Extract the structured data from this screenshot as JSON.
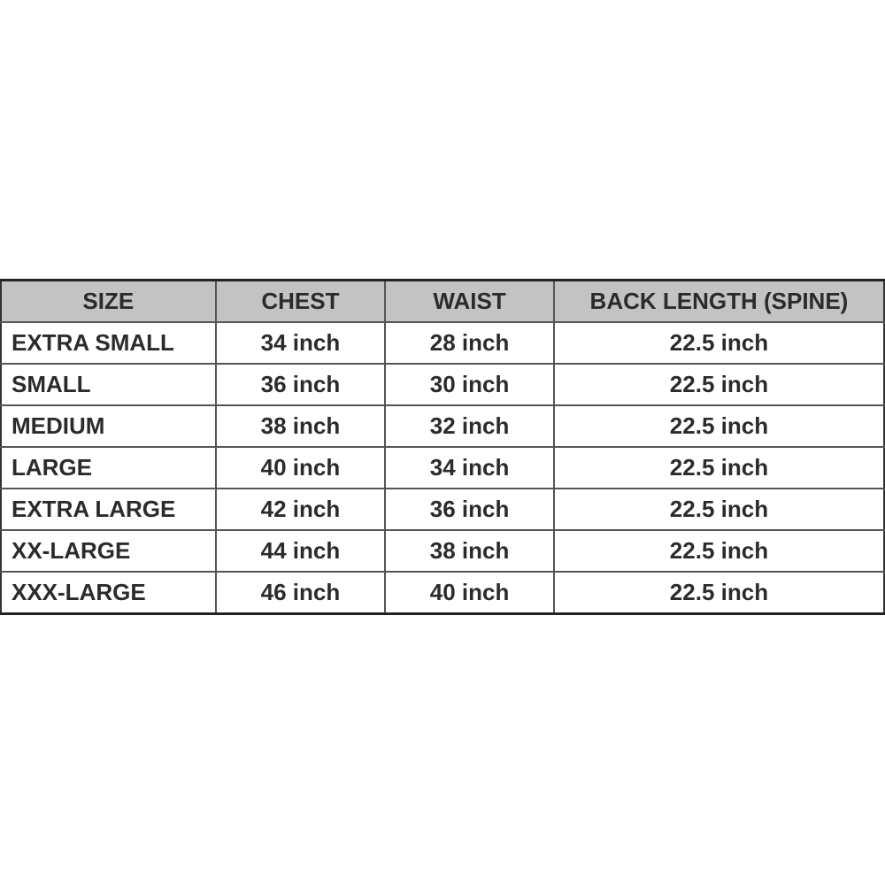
{
  "table": {
    "headers": [
      "SIZE",
      "CHEST",
      "WAIST",
      "BACK LENGTH (SPINE)"
    ],
    "rows": [
      [
        "EXTRA SMALL",
        "34 inch",
        "28 inch",
        "22.5 inch"
      ],
      [
        "SMALL",
        "36 inch",
        "30 inch",
        "22.5 inch"
      ],
      [
        "MEDIUM",
        "38 inch",
        "32 inch",
        "22.5 inch"
      ],
      [
        "LARGE",
        "40 inch",
        "34 inch",
        "22.5 inch"
      ],
      [
        "EXTRA LARGE",
        "42 inch",
        "36 inch",
        "22.5 inch"
      ],
      [
        "XX-LARGE",
        "44 inch",
        "38 inch",
        "22.5 inch"
      ],
      [
        "XXX-LARGE",
        "46 inch",
        "40 inch",
        "22.5 inch"
      ]
    ]
  },
  "colors": {
    "header_bg": "#c3c3c3",
    "text": "#2b2b2b",
    "border": "#555555"
  }
}
